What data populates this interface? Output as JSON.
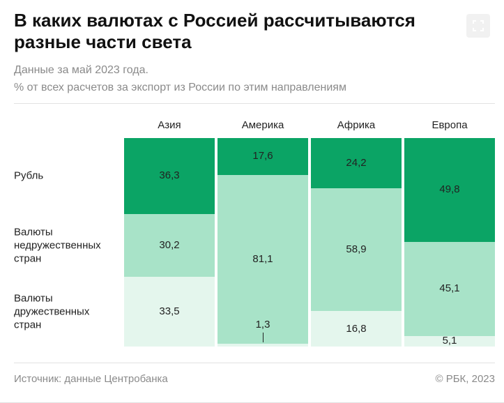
{
  "chart_data": {
    "type": "bar",
    "stacked": true,
    "title": "В каких валютах с Россией рассчитываются разные части света",
    "subtitle": [
      "Данные за май 2023 года.",
      "% от всех расчетов за экспорт из России по этим направлениям"
    ],
    "categories": [
      "Азия",
      "Америка",
      "Африка",
      "Европа"
    ],
    "ylim": [
      0,
      100
    ],
    "series": [
      {
        "name": "Рубль",
        "color": "#0ba465",
        "values": [
          36.3,
          17.6,
          24.2,
          49.8
        ],
        "value_labels": [
          "36,3",
          "17,6",
          "24,2",
          "49,8"
        ]
      },
      {
        "name": "Валюты недружественных стран",
        "color": "#a8e3c8",
        "values": [
          30.2,
          81.1,
          58.9,
          45.1
        ],
        "value_labels": [
          "30,2",
          "81,1",
          "58,9",
          "45,1"
        ]
      },
      {
        "name": "Валюты дружественных стран",
        "color": "#e4f6ed",
        "values": [
          33.5,
          1.3,
          16.8,
          5.1
        ],
        "value_labels": [
          "33,5",
          "1,3",
          "16,8",
          "5,1"
        ]
      }
    ],
    "source": "Источник: данные Центробанка",
    "credit": "© РБК, 2023"
  }
}
